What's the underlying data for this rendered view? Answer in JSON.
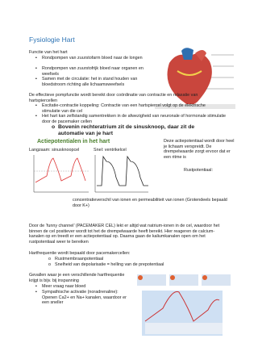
{
  "title": "Fysiologie Hart",
  "functie": {
    "heading": "Functie van het hart",
    "items": [
      "Rondpompen van zuurstofarm bloed naar de longen",
      "Rondpompen van zuurstofrijk bloed naar organen en weefsels",
      "Samen met de circulatie: het in stand houden van bloedstroom richting alle lichaamsweefsels"
    ]
  },
  "coordinatie": {
    "text": "De effectieve pompfunctie wordt bereikt door coördinatie van contractie en relaxatie van hartspiercellen",
    "items": [
      "Excitatie-contractie koppeling: Contractie van een hartspiercel volgt op de elektrische stimulatie van die cel",
      "Het hart kan zelfstandig samentrekken in de afwezigheid van neuronale of hormonale stimulatie door de pacemaker cellen"
    ],
    "sub": "Bovenin rechteratrium zit de sinusknoop, daar zit de automatie van je hart"
  },
  "actiepotentialen": {
    "heading": "Actiepotentialen in het hart",
    "graph_labels": [
      "Langzaam: sinusknoopcel",
      "Snel: ventrikelcel"
    ],
    "text": "Deze actiepotentiaal wordt door heel je lichaam verspreidt. De drempelwaarde zorgt ervoor dat er een ritme is",
    "rust_label": "Rustpotentiaal:",
    "rust_text": "concentratieverschil van ionen en permeabiliteit van ionen (Grotendeels bepaald door K+)"
  },
  "funny": {
    "text": "Door de ‘funny channel’ (PACEMAKER CEL) lekt er altijd wat natrium-ionen in de cel, waardoor het binnen de cel positiever wordt tot het de drempelwaarde heeft bereikt. Hier reageren de calcium-kanalen op en treedt er een actiepotentiaal op. Daarna gaan de kaliumkanalen open om het rustpotentiaal weer te bereiken"
  },
  "frequentie": {
    "heading": "Hartfrequentie wordt bepaald door pacemakercellen:",
    "items": [
      "Rustmembraanpotentiaal",
      "Snelheid van depolarisatie = helling van de prepotentiaal"
    ]
  },
  "gevallen": {
    "text": "Gevallen waar je een verschillende hartfrequentie krijgt is bijv. bij inspanning",
    "items": [
      "Meer vraag naar bloed",
      "Sympathische activatie (noradrenaline): Openen Ca2+ en Na+ kanalen, waardoor er een sneller"
    ]
  }
}
